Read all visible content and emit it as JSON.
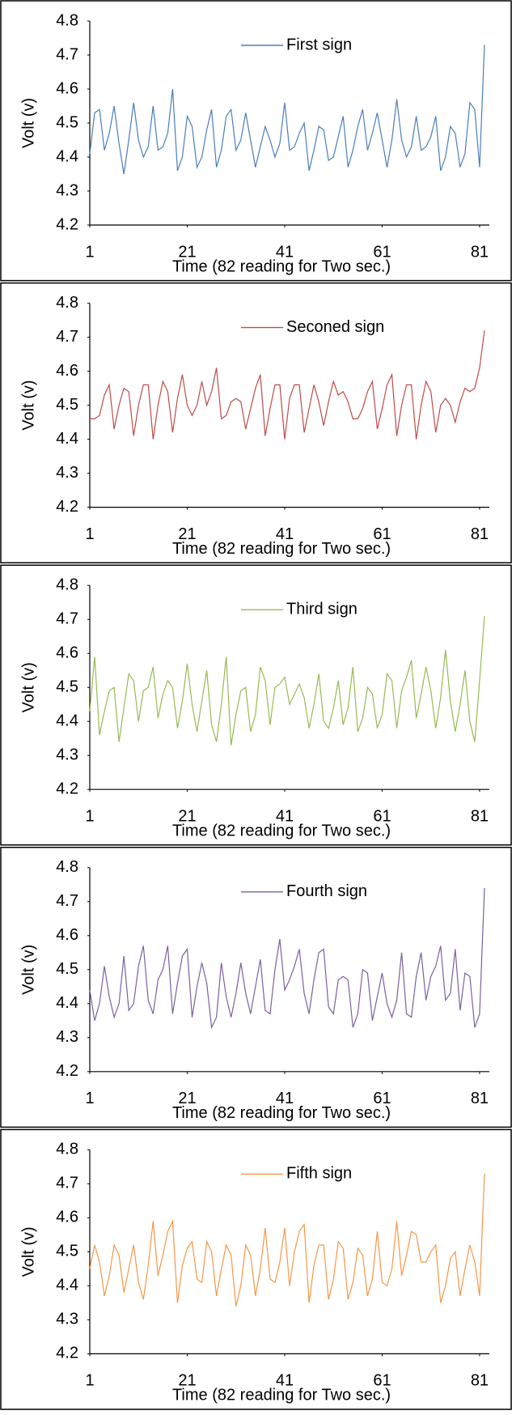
{
  "chart_data": [
    {
      "type": "line",
      "x_label": "Time (82 reading for Two sec.)",
      "y_label": "Volt (v)",
      "legend": "top-center",
      "grid": false,
      "x": [
        1,
        2,
        3,
        4,
        5,
        6,
        7,
        8,
        9,
        10,
        11,
        12,
        13,
        14,
        15,
        16,
        17,
        18,
        19,
        20,
        21,
        22,
        23,
        24,
        25,
        26,
        27,
        28,
        29,
        30,
        31,
        32,
        33,
        34,
        35,
        36,
        37,
        38,
        39,
        40,
        41,
        42,
        43,
        44,
        45,
        46,
        47,
        48,
        49,
        50,
        51,
        52,
        53,
        54,
        55,
        56,
        57,
        58,
        59,
        60,
        61,
        62,
        63,
        64,
        65,
        66,
        67,
        68,
        69,
        70,
        71,
        72,
        73,
        74,
        75,
        76,
        77,
        78,
        79,
        80,
        81,
        82
      ],
      "xlim": [
        1,
        83
      ],
      "xticks": [
        1,
        21,
        41,
        61,
        81
      ],
      "ylim": [
        4.2,
        4.8
      ],
      "yticks": [
        4.2,
        4.3,
        4.4,
        4.5,
        4.6,
        4.7,
        4.8
      ],
      "series": [
        {
          "name": "First sign",
          "color": "#4a7ebb",
          "values": [
            4.41,
            4.53,
            4.54,
            4.42,
            4.47,
            4.55,
            4.44,
            4.35,
            4.45,
            4.56,
            4.45,
            4.4,
            4.43,
            4.55,
            4.42,
            4.43,
            4.47,
            4.6,
            4.36,
            4.4,
            4.52,
            4.49,
            4.37,
            4.4,
            4.48,
            4.54,
            4.37,
            4.42,
            4.52,
            4.54,
            4.42,
            4.45,
            4.53,
            4.45,
            4.37,
            4.43,
            4.49,
            4.45,
            4.4,
            4.44,
            4.56,
            4.42,
            4.43,
            4.47,
            4.5,
            4.36,
            4.42,
            4.49,
            4.48,
            4.39,
            4.4,
            4.46,
            4.52,
            4.37,
            4.42,
            4.49,
            4.54,
            4.42,
            4.47,
            4.53,
            4.45,
            4.37,
            4.45,
            4.57,
            4.45,
            4.4,
            4.43,
            4.52,
            4.42,
            4.43,
            4.46,
            4.52,
            4.36,
            4.4,
            4.49,
            4.47,
            4.37,
            4.41,
            4.56,
            4.54,
            4.37,
            4.73
          ]
        }
      ]
    },
    {
      "type": "line",
      "x_label": "Time (82 reading for Two sec.)",
      "y_label": "Volt (v)",
      "legend": "top-center",
      "grid": false,
      "x": [
        1,
        2,
        3,
        4,
        5,
        6,
        7,
        8,
        9,
        10,
        11,
        12,
        13,
        14,
        15,
        16,
        17,
        18,
        19,
        20,
        21,
        22,
        23,
        24,
        25,
        26,
        27,
        28,
        29,
        30,
        31,
        32,
        33,
        34,
        35,
        36,
        37,
        38,
        39,
        40,
        41,
        42,
        43,
        44,
        45,
        46,
        47,
        48,
        49,
        50,
        51,
        52,
        53,
        54,
        55,
        56,
        57,
        58,
        59,
        60,
        61,
        62,
        63,
        64,
        65,
        66,
        67,
        68,
        69,
        70,
        71,
        72,
        73,
        74,
        75,
        76,
        77,
        78,
        79,
        80,
        81,
        82
      ],
      "xlim": [
        1,
        83
      ],
      "xticks": [
        1,
        21,
        41,
        61,
        81
      ],
      "ylim": [
        4.2,
        4.8
      ],
      "yticks": [
        4.2,
        4.3,
        4.4,
        4.5,
        4.6,
        4.7,
        4.8
      ],
      "series": [
        {
          "name": "Seconed sign",
          "color": "#be4b48",
          "values": [
            4.46,
            4.46,
            4.47,
            4.53,
            4.56,
            4.43,
            4.5,
            4.55,
            4.54,
            4.41,
            4.5,
            4.56,
            4.56,
            4.4,
            4.5,
            4.57,
            4.54,
            4.42,
            4.52,
            4.59,
            4.5,
            4.47,
            4.5,
            4.57,
            4.5,
            4.54,
            4.61,
            4.46,
            4.47,
            4.51,
            4.52,
            4.51,
            4.43,
            4.49,
            4.55,
            4.59,
            4.41,
            4.49,
            4.56,
            4.56,
            4.4,
            4.52,
            4.56,
            4.56,
            4.42,
            4.49,
            4.56,
            4.51,
            4.44,
            4.51,
            4.57,
            4.53,
            4.54,
            4.51,
            4.46,
            4.46,
            4.49,
            4.54,
            4.57,
            4.43,
            4.49,
            4.56,
            4.59,
            4.41,
            4.5,
            4.56,
            4.56,
            4.4,
            4.5,
            4.57,
            4.54,
            4.42,
            4.5,
            4.52,
            4.5,
            4.45,
            4.51,
            4.55,
            4.54,
            4.55,
            4.61,
            4.72
          ]
        }
      ]
    },
    {
      "type": "line",
      "x_label": "Time (82 reading for Two sec.)",
      "y_label": "Volt (v)",
      "legend": "top-center",
      "grid": false,
      "x": [
        1,
        2,
        3,
        4,
        5,
        6,
        7,
        8,
        9,
        10,
        11,
        12,
        13,
        14,
        15,
        16,
        17,
        18,
        19,
        20,
        21,
        22,
        23,
        24,
        25,
        26,
        27,
        28,
        29,
        30,
        31,
        32,
        33,
        34,
        35,
        36,
        37,
        38,
        39,
        40,
        41,
        42,
        43,
        44,
        45,
        46,
        47,
        48,
        49,
        50,
        51,
        52,
        53,
        54,
        55,
        56,
        57,
        58,
        59,
        60,
        61,
        62,
        63,
        64,
        65,
        66,
        67,
        68,
        69,
        70,
        71,
        72,
        73,
        74,
        75,
        76,
        77,
        78,
        79,
        80,
        81,
        82
      ],
      "xlim": [
        1,
        83
      ],
      "xticks": [
        1,
        21,
        41,
        61,
        81
      ],
      "ylim": [
        4.2,
        4.8
      ],
      "yticks": [
        4.2,
        4.3,
        4.4,
        4.5,
        4.6,
        4.7,
        4.8
      ],
      "series": [
        {
          "name": "Third sign",
          "color": "#98b954",
          "values": [
            4.43,
            4.59,
            4.36,
            4.43,
            4.49,
            4.5,
            4.34,
            4.44,
            4.54,
            4.52,
            4.4,
            4.49,
            4.5,
            4.56,
            4.41,
            4.48,
            4.52,
            4.5,
            4.38,
            4.46,
            4.57,
            4.45,
            4.37,
            4.46,
            4.55,
            4.39,
            4.34,
            4.45,
            4.59,
            4.33,
            4.42,
            4.49,
            4.5,
            4.37,
            4.42,
            4.56,
            4.52,
            4.39,
            4.5,
            4.51,
            4.53,
            4.45,
            4.48,
            4.51,
            4.47,
            4.38,
            4.45,
            4.54,
            4.4,
            4.38,
            4.44,
            4.52,
            4.39,
            4.44,
            4.56,
            4.37,
            4.41,
            4.5,
            4.48,
            4.38,
            4.42,
            4.54,
            4.52,
            4.38,
            4.49,
            4.53,
            4.58,
            4.41,
            4.48,
            4.56,
            4.49,
            4.38,
            4.47,
            4.61,
            4.46,
            4.37,
            4.45,
            4.55,
            4.4,
            4.34,
            4.52,
            4.71
          ]
        }
      ]
    },
    {
      "type": "line",
      "x_label": "Time (82 reading for Two sec.)",
      "y_label": "Volt (v)",
      "legend": "top-center",
      "grid": false,
      "x": [
        1,
        2,
        3,
        4,
        5,
        6,
        7,
        8,
        9,
        10,
        11,
        12,
        13,
        14,
        15,
        16,
        17,
        18,
        19,
        20,
        21,
        22,
        23,
        24,
        25,
        26,
        27,
        28,
        29,
        30,
        31,
        32,
        33,
        34,
        35,
        36,
        37,
        38,
        39,
        40,
        41,
        42,
        43,
        44,
        45,
        46,
        47,
        48,
        49,
        50,
        51,
        52,
        53,
        54,
        55,
        56,
        57,
        58,
        59,
        60,
        61,
        62,
        63,
        64,
        65,
        66,
        67,
        68,
        69,
        70,
        71,
        72,
        73,
        74,
        75,
        76,
        77,
        78,
        79,
        80,
        81,
        82
      ],
      "xlim": [
        1,
        83
      ],
      "xticks": [
        1,
        21,
        41,
        61,
        81
      ],
      "ylim": [
        4.2,
        4.8
      ],
      "yticks": [
        4.2,
        4.3,
        4.4,
        4.5,
        4.6,
        4.7,
        4.8
      ],
      "series": [
        {
          "name": "Fourth sign",
          "color": "#7d60a0",
          "values": [
            4.44,
            4.35,
            4.4,
            4.51,
            4.42,
            4.36,
            4.4,
            4.54,
            4.38,
            4.4,
            4.51,
            4.57,
            4.41,
            4.37,
            4.47,
            4.5,
            4.57,
            4.37,
            4.46,
            4.54,
            4.56,
            4.36,
            4.45,
            4.52,
            4.46,
            4.33,
            4.36,
            4.52,
            4.42,
            4.36,
            4.43,
            4.52,
            4.43,
            4.37,
            4.45,
            4.53,
            4.38,
            4.37,
            4.5,
            4.59,
            4.44,
            4.47,
            4.51,
            4.56,
            4.43,
            4.37,
            4.47,
            4.55,
            4.56,
            4.39,
            4.37,
            4.47,
            4.48,
            4.47,
            4.33,
            4.37,
            4.5,
            4.49,
            4.35,
            4.42,
            4.49,
            4.4,
            4.36,
            4.41,
            4.55,
            4.37,
            4.36,
            4.48,
            4.55,
            4.41,
            4.48,
            4.51,
            4.57,
            4.41,
            4.43,
            4.56,
            4.38,
            4.49,
            4.48,
            4.33,
            4.37,
            4.74
          ]
        }
      ]
    },
    {
      "type": "line",
      "x_label": "Time (82 reading for Two sec.)",
      "y_label": "Volt (v)",
      "legend": "top-center",
      "grid": false,
      "x": [
        1,
        2,
        3,
        4,
        5,
        6,
        7,
        8,
        9,
        10,
        11,
        12,
        13,
        14,
        15,
        16,
        17,
        18,
        19,
        20,
        21,
        22,
        23,
        24,
        25,
        26,
        27,
        28,
        29,
        30,
        31,
        32,
        33,
        34,
        35,
        36,
        37,
        38,
        39,
        40,
        41,
        42,
        43,
        44,
        45,
        46,
        47,
        48,
        49,
        50,
        51,
        52,
        53,
        54,
        55,
        56,
        57,
        58,
        59,
        60,
        61,
        62,
        63,
        64,
        65,
        66,
        67,
        68,
        69,
        70,
        71,
        72,
        73,
        74,
        75,
        76,
        77,
        78,
        79,
        80,
        81,
        82
      ],
      "xlim": [
        1,
        83
      ],
      "xticks": [
        1,
        21,
        41,
        61,
        81
      ],
      "ylim": [
        4.2,
        4.8
      ],
      "yticks": [
        4.2,
        4.3,
        4.4,
        4.5,
        4.6,
        4.7,
        4.8
      ],
      "series": [
        {
          "name": "Fifth sign",
          "color": "#f79646",
          "values": [
            4.45,
            4.52,
            4.47,
            4.37,
            4.43,
            4.52,
            4.49,
            4.38,
            4.45,
            4.52,
            4.41,
            4.36,
            4.46,
            4.59,
            4.43,
            4.49,
            4.56,
            4.59,
            4.35,
            4.46,
            4.51,
            4.53,
            4.42,
            4.41,
            4.53,
            4.5,
            4.37,
            4.45,
            4.52,
            4.49,
            4.34,
            4.4,
            4.52,
            4.49,
            4.37,
            4.45,
            4.57,
            4.42,
            4.41,
            4.47,
            4.57,
            4.4,
            4.5,
            4.56,
            4.58,
            4.35,
            4.46,
            4.52,
            4.52,
            4.36,
            4.42,
            4.53,
            4.51,
            4.36,
            4.41,
            4.51,
            4.49,
            4.37,
            4.42,
            4.56,
            4.41,
            4.4,
            4.45,
            4.59,
            4.43,
            4.49,
            4.56,
            4.55,
            4.47,
            4.47,
            4.5,
            4.52,
            4.35,
            4.4,
            4.48,
            4.5,
            4.37,
            4.45,
            4.52,
            4.47,
            4.37,
            4.73
          ]
        }
      ]
    }
  ]
}
